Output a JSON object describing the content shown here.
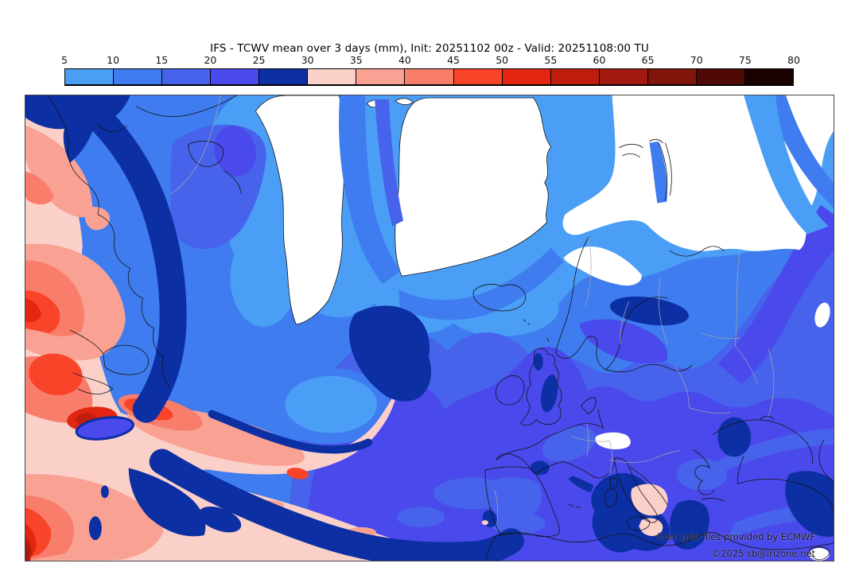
{
  "title": "IFS - TCWV mean over 3 days (mm), Init: 20251102 00z - Valid: 20251108:00 TU",
  "colorbar": {
    "unit": "mm",
    "min": 5,
    "max": 80,
    "step": 5,
    "tick_labels": [
      "5",
      "10",
      "15",
      "20",
      "25",
      "30",
      "35",
      "40",
      "45",
      "50",
      "55",
      "60",
      "65",
      "70",
      "75",
      "80"
    ],
    "segment_colors": [
      "#4A9EF5",
      "#3E7CEF",
      "#4763EC",
      "#4A49EC",
      "#0C2FA3",
      "#FBD0C9",
      "#F9A294",
      "#F87E6B",
      "#F8452A",
      "#E22612",
      "#BF1E0E",
      "#A31B10",
      "#7F150B",
      "#500A05",
      "#190301"
    ]
  },
  "map": {
    "attribution_line1": "from grib files provided by ECMWF",
    "attribution_line2": "©2025 sb@irizone.net",
    "no_data_color": "#ffffff",
    "coastline_color": "#151515",
    "country_border_color": "#a9a9a9",
    "frame_color": "#444444"
  }
}
